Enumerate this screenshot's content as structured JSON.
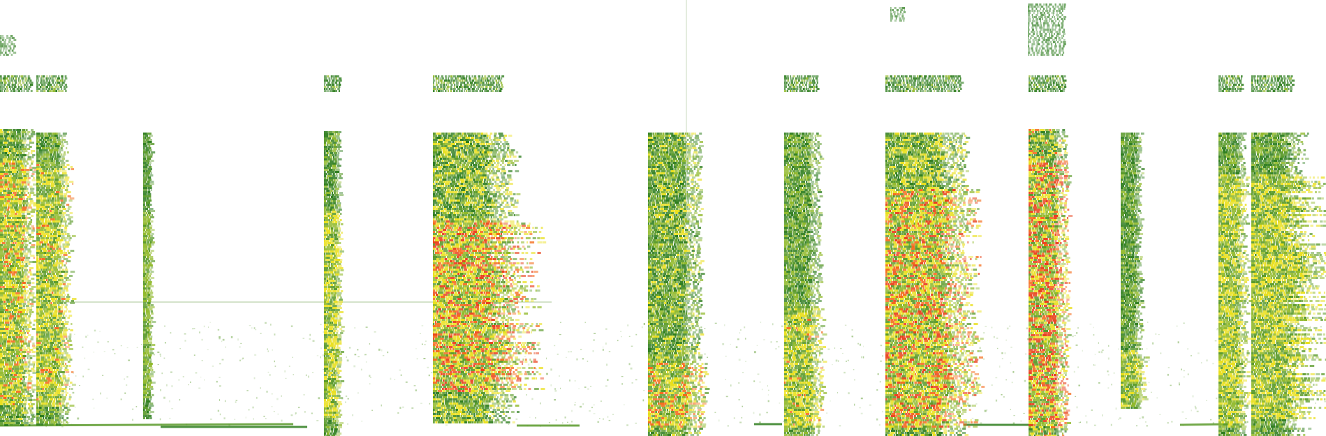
{
  "image_kind": "spectrogram",
  "palette": {
    "background": "#ffffff",
    "low": "#2e7d1e",
    "low_light": "#5a9a2a",
    "mid": "#8fb828",
    "high": "#e9df1a",
    "peak": "#f46a18",
    "peak_deep": "#e8401a"
  },
  "labels": []
}
